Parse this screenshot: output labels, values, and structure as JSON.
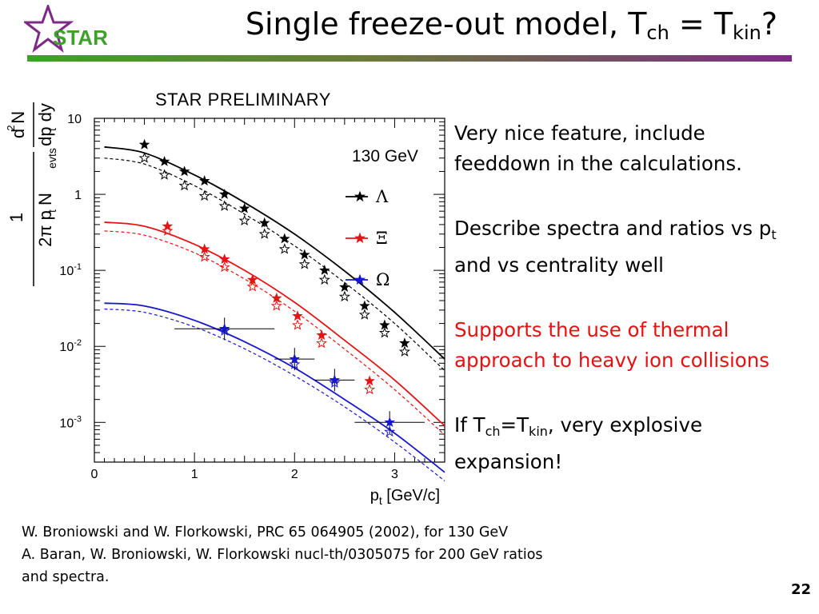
{
  "slide": {
    "title_main": "Single freeze-out model, T",
    "title_sub1": "ch",
    "title_mid": " = T",
    "title_sub2": "kin",
    "title_end": "?",
    "logo_text": "STAR",
    "page_number": "22"
  },
  "bullets": {
    "b1": "Very nice feature, include feeddown in the calculations.",
    "b2_pre": "Describe spectra and ratios vs p",
    "b2_sub": "t",
    "b2_post": " and vs centrality well",
    "b3": "Supports the use of thermal approach to heavy ion collisions",
    "b4_a": "If T",
    "b4_sub1": "ch",
    "b4_b": "=T",
    "b4_sub2": "kin",
    "b4_c": ", very explosive expansion!"
  },
  "references": [
    "W. Broniowski and W. Florkowski, PRC 65 064905 (2002), for 130 GeV",
    "A. Baran, W. Broniowski, W. Florkowski nucl-th/0305075 for 200 GeV ratios",
    "and spectra."
  ],
  "colors": {
    "lambda": "#000000",
    "xi": "#e41414",
    "omega": "#1717d0",
    "red_text": "#e81010"
  },
  "chart_data": {
    "type": "scatter",
    "title": "STAR PRELIMINARY",
    "annotation": "130 GeV",
    "xlabel": "p_t [GeV/c]",
    "ylabel": "1/(2π p_t N_evts) d²N/(dp_t dy)",
    "xlim": [
      0,
      3.5
    ],
    "ylim": [
      0.0003,
      10
    ],
    "yscale": "log",
    "x_ticks": [
      "0",
      "1",
      "2",
      "3"
    ],
    "y_ticks": [
      "10",
      "1",
      "10^-1",
      "10^-2",
      "10^-3"
    ],
    "legend_position": "right",
    "series": [
      {
        "name": "Λ",
        "color": "#000000",
        "points_filled": [
          [
            0.5,
            4.5
          ],
          [
            0.7,
            2.7
          ],
          [
            0.9,
            2.0
          ],
          [
            1.1,
            1.5
          ],
          [
            1.3,
            1.0
          ],
          [
            1.5,
            0.65
          ],
          [
            1.7,
            0.42
          ],
          [
            1.9,
            0.26
          ],
          [
            2.1,
            0.16
          ],
          [
            2.3,
            0.1
          ],
          [
            2.5,
            0.06
          ],
          [
            2.7,
            0.034
          ],
          [
            2.9,
            0.019
          ],
          [
            3.1,
            0.011
          ]
        ],
        "points_open": [
          [
            0.5,
            3.0
          ],
          [
            0.7,
            1.8
          ],
          [
            0.9,
            1.3
          ],
          [
            1.1,
            0.95
          ],
          [
            1.3,
            0.7
          ],
          [
            1.5,
            0.45
          ],
          [
            1.7,
            0.3
          ],
          [
            1.9,
            0.19
          ],
          [
            2.1,
            0.12
          ],
          [
            2.3,
            0.075
          ],
          [
            2.5,
            0.045
          ],
          [
            2.7,
            0.026
          ],
          [
            2.9,
            0.015
          ],
          [
            3.1,
            0.0085
          ]
        ],
        "curve_solid": [
          [
            0.1,
            4.2
          ],
          [
            0.5,
            3.5
          ],
          [
            1.0,
            1.8
          ],
          [
            1.5,
            0.78
          ],
          [
            2.0,
            0.3
          ],
          [
            2.5,
            0.098
          ],
          [
            3.0,
            0.028
          ],
          [
            3.5,
            0.0068
          ]
        ],
        "curve_dashed": [
          [
            0.1,
            3.0
          ],
          [
            0.5,
            2.5
          ],
          [
            1.0,
            1.3
          ],
          [
            1.5,
            0.55
          ],
          [
            2.0,
            0.21
          ],
          [
            2.5,
            0.069
          ],
          [
            3.0,
            0.02
          ],
          [
            3.5,
            0.0048
          ]
        ]
      },
      {
        "name": "Ξ",
        "color": "#e41414",
        "points_filled": [
          [
            0.73,
            0.38
          ],
          [
            1.1,
            0.19
          ],
          [
            1.3,
            0.14
          ],
          [
            1.58,
            0.075
          ],
          [
            1.82,
            0.043
          ],
          [
            2.03,
            0.025
          ],
          [
            2.27,
            0.014
          ],
          [
            2.75,
            0.0035
          ]
        ],
        "points_open": [
          [
            0.73,
            0.33
          ],
          [
            1.1,
            0.15
          ],
          [
            1.3,
            0.11
          ],
          [
            1.58,
            0.061
          ],
          [
            1.82,
            0.034
          ],
          [
            2.03,
            0.019
          ],
          [
            2.27,
            0.011
          ],
          [
            2.75,
            0.0027
          ]
        ],
        "curve_solid": [
          [
            0.1,
            0.43
          ],
          [
            0.5,
            0.38
          ],
          [
            1.0,
            0.22
          ],
          [
            1.5,
            0.1
          ],
          [
            2.0,
            0.038
          ],
          [
            2.5,
            0.012
          ],
          [
            3.0,
            0.0036
          ],
          [
            3.5,
            0.0009
          ]
        ],
        "curve_dashed": [
          [
            0.1,
            0.33
          ],
          [
            0.5,
            0.29
          ],
          [
            1.0,
            0.17
          ],
          [
            1.5,
            0.077
          ],
          [
            2.0,
            0.029
          ],
          [
            2.5,
            0.0092
          ],
          [
            3.0,
            0.0027
          ],
          [
            3.5,
            0.00068
          ]
        ]
      },
      {
        "name": "Ω",
        "color": "#1717d0",
        "points_filled": [
          [
            1.3,
            0.017
          ],
          [
            2.0,
            0.0068
          ],
          [
            2.4,
            0.0036
          ],
          [
            2.95,
            0.001
          ]
        ],
        "points_open": [
          [
            1.3,
            0.016
          ],
          [
            2.0,
            0.0058
          ],
          [
            2.4,
            0.0033
          ],
          [
            2.95,
            0.00075
          ]
        ],
        "x_err": [
          0.5,
          0.2,
          0.2,
          0.35
        ],
        "curve_solid": [
          [
            0.1,
            0.037
          ],
          [
            0.5,
            0.034
          ],
          [
            1.0,
            0.022
          ],
          [
            1.5,
            0.0115
          ],
          [
            2.0,
            0.0052
          ],
          [
            2.5,
            0.002
          ],
          [
            3.0,
            0.00072
          ],
          [
            3.5,
            0.00022
          ]
        ],
        "curve_dashed": [
          [
            0.1,
            0.031
          ],
          [
            0.5,
            0.028
          ],
          [
            1.0,
            0.018
          ],
          [
            1.5,
            0.0093
          ],
          [
            2.0,
            0.0041
          ],
          [
            2.5,
            0.0016
          ],
          [
            3.0,
            0.00055
          ],
          [
            3.5,
            0.00017
          ]
        ]
      }
    ]
  }
}
